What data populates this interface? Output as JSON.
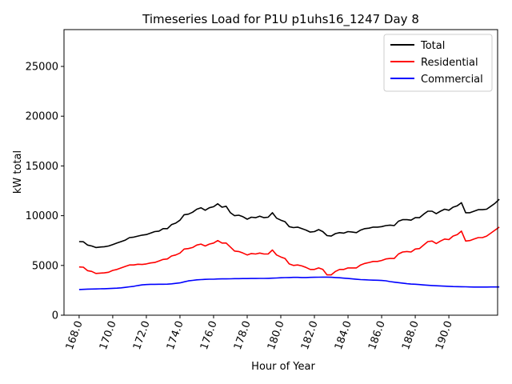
{
  "chart_data": {
    "type": "line",
    "title": "Timeseries Load for P1U p1uhs16_1247  Day 8",
    "xlabel": "Hour of Year",
    "ylabel": "kW total",
    "xlim": [
      167.1,
      192.9
    ],
    "ylim": [
      0,
      28700
    ],
    "x_ticks": [
      168,
      170,
      172,
      174,
      176,
      178,
      180,
      182,
      184,
      186,
      188,
      190
    ],
    "x_tick_labels": [
      "168.0",
      "170.0",
      "172.0",
      "174.0",
      "176.0",
      "178.0",
      "180.0",
      "182.0",
      "184.0",
      "186.0",
      "188.0",
      "190.0"
    ],
    "y_ticks": [
      0,
      5000,
      10000,
      15000,
      20000,
      25000
    ],
    "y_tick_labels": [
      "0",
      "5000",
      "10000",
      "15000",
      "20000",
      "25000"
    ],
    "legend_position": "top-right",
    "x_start": 168.0,
    "x_step": 0.25,
    "series": [
      {
        "name": "Total",
        "color": "#000000",
        "values": [
          7400,
          7380,
          7050,
          6950,
          6800,
          6850,
          6880,
          6950,
          7100,
          7250,
          7400,
          7550,
          7800,
          7850,
          7950,
          8050,
          8100,
          8250,
          8400,
          8450,
          8700,
          8700,
          9100,
          9250,
          9550,
          10100,
          10150,
          10350,
          10650,
          10800,
          10550,
          10800,
          10900,
          11200,
          10850,
          10950,
          10300,
          10000,
          10050,
          9900,
          9650,
          9850,
          9800,
          9950,
          9800,
          9850,
          10300,
          9750,
          9550,
          9400,
          8900,
          8800,
          8850,
          8700,
          8550,
          8350,
          8400,
          8600,
          8400,
          8000,
          7950,
          8200,
          8300,
          8250,
          8400,
          8350,
          8300,
          8550,
          8700,
          8750,
          8850,
          8850,
          8900,
          9000,
          9050,
          9000,
          9450,
          9600,
          9600,
          9550,
          9800,
          9800,
          10150,
          10450,
          10450,
          10200,
          10450,
          10650,
          10550,
          10850,
          11000,
          11300,
          10300,
          10300,
          10450,
          10600,
          10600,
          10650,
          10950,
          11250,
          11650
        ]
      },
      {
        "name": "Residential",
        "color": "#ff0000",
        "values": [
          4850,
          4820,
          4480,
          4400,
          4200,
          4230,
          4250,
          4320,
          4500,
          4600,
          4750,
          4900,
          5050,
          5050,
          5120,
          5100,
          5150,
          5250,
          5300,
          5450,
          5600,
          5650,
          5950,
          6050,
          6250,
          6650,
          6700,
          6800,
          7050,
          7150,
          6950,
          7150,
          7250,
          7500,
          7250,
          7250,
          6850,
          6450,
          6400,
          6250,
          6050,
          6200,
          6150,
          6250,
          6150,
          6150,
          6550,
          6050,
          5850,
          5700,
          5150,
          5000,
          5050,
          4950,
          4800,
          4600,
          4600,
          4750,
          4600,
          4050,
          4050,
          4400,
          4600,
          4600,
          4750,
          4750,
          4750,
          5050,
          5200,
          5300,
          5400,
          5400,
          5500,
          5650,
          5700,
          5700,
          6150,
          6350,
          6400,
          6350,
          6650,
          6700,
          7050,
          7400,
          7450,
          7200,
          7450,
          7650,
          7600,
          7950,
          8100,
          8450,
          7450,
          7500,
          7650,
          7800,
          7800,
          7950,
          8250,
          8550,
          8850
        ]
      },
      {
        "name": "Commercial",
        "color": "#0000ff",
        "values": [
          2580,
          2600,
          2620,
          2630,
          2640,
          2650,
          2660,
          2680,
          2700,
          2720,
          2750,
          2800,
          2850,
          2900,
          2980,
          3050,
          3080,
          3100,
          3100,
          3110,
          3110,
          3120,
          3150,
          3200,
          3250,
          3350,
          3450,
          3500,
          3550,
          3580,
          3600,
          3620,
          3620,
          3640,
          3650,
          3650,
          3660,
          3670,
          3670,
          3680,
          3680,
          3690,
          3690,
          3700,
          3700,
          3710,
          3720,
          3740,
          3760,
          3780,
          3790,
          3800,
          3800,
          3790,
          3790,
          3800,
          3810,
          3820,
          3830,
          3830,
          3810,
          3790,
          3760,
          3720,
          3690,
          3650,
          3610,
          3580,
          3560,
          3540,
          3520,
          3510,
          3490,
          3460,
          3380,
          3320,
          3270,
          3220,
          3170,
          3130,
          3110,
          3080,
          3040,
          3010,
          2980,
          2960,
          2940,
          2920,
          2900,
          2880,
          2870,
          2860,
          2850,
          2840,
          2830,
          2830,
          2830,
          2830,
          2840,
          2840,
          2840
        ]
      }
    ]
  }
}
